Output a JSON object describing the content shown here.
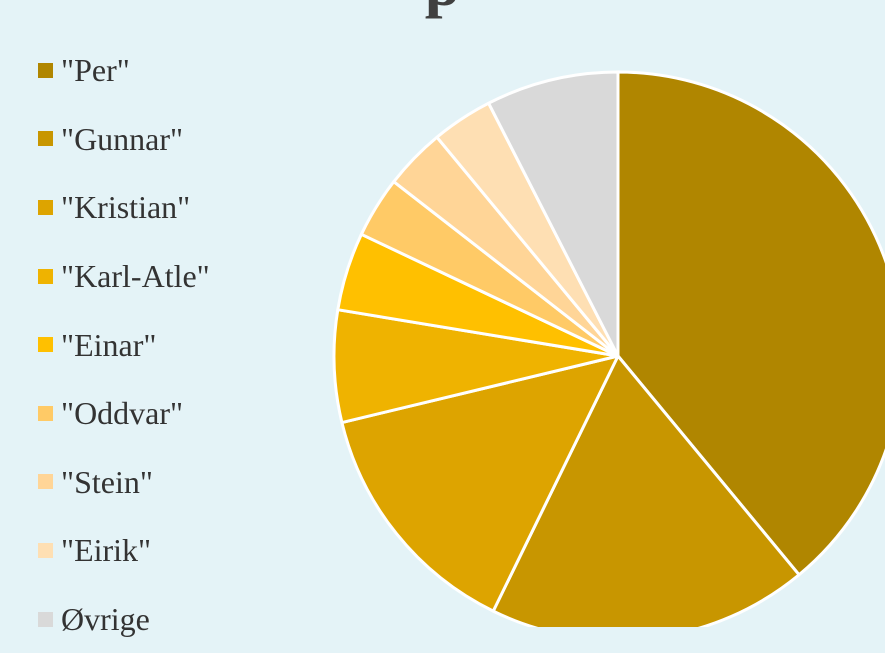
{
  "chart_data": {
    "type": "pie",
    "title": "p",
    "legend_position": "left",
    "start_angle_deg": 0,
    "direction": "clockwise",
    "slices": [
      {
        "label": "\"Per\"",
        "value": 40.4,
        "color": "#b08600"
      },
      {
        "label": "\"Gunnar\"",
        "value": 18.9,
        "color": "#c89600"
      },
      {
        "label": "\"Kristian\"",
        "value": 14.5,
        "color": "#dda400"
      },
      {
        "label": "\"Karl-Atle\"",
        "value": 6.6,
        "color": "#efb300"
      },
      {
        "label": "\"Einar\"",
        "value": 4.6,
        "color": "#ffc000"
      },
      {
        "label": "\"Oddvar\"",
        "value": 3.6,
        "color": "#ffca66"
      },
      {
        "label": "\"Stein\"",
        "value": 3.6,
        "color": "#ffd597"
      },
      {
        "label": "\"Eirik\"",
        "value": 3.6,
        "color": "#fedfb3"
      },
      {
        "label": "Øvrige",
        "value": 7.8,
        "color": "#d9d9d9"
      }
    ]
  }
}
